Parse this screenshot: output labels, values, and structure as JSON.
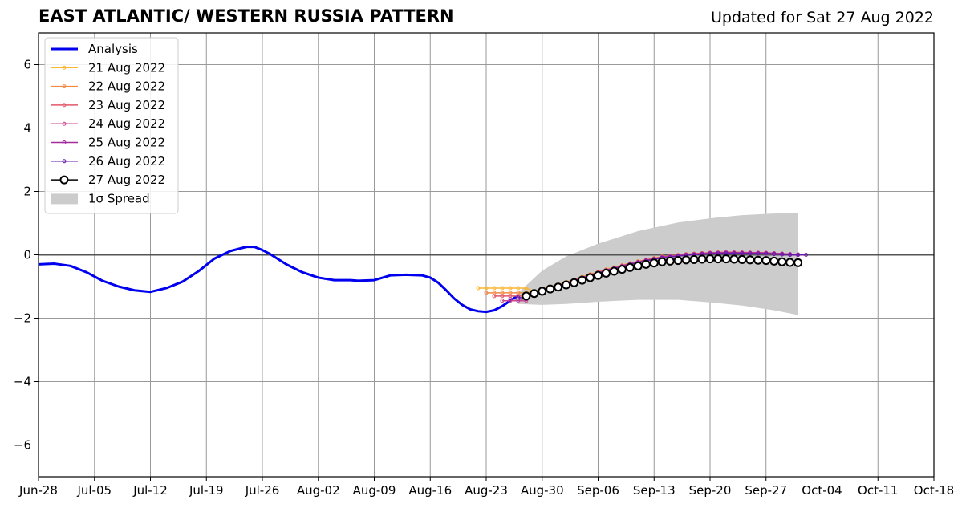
{
  "header": {
    "title": "EAST ATLANTIC/ WESTERN RUSSIA PATTERN",
    "updated": "Updated for Sat 27 Aug 2022"
  },
  "chart_data": {
    "type": "line",
    "title": "EAST ATLANTIC/ WESTERN RUSSIA PATTERN",
    "subtitle": "Updated for Sat 27 Aug 2022",
    "xlabel": "",
    "ylabel": "",
    "x_tick_labels": [
      "Jun-28",
      "Jul-05",
      "Jul-12",
      "Jul-19",
      "Jul-26",
      "Aug-02",
      "Aug-09",
      "Aug-16",
      "Aug-23",
      "Aug-30",
      "Sep-06",
      "Sep-13",
      "Sep-20",
      "Sep-27",
      "Oct-04",
      "Oct-11",
      "Oct-18"
    ],
    "x_tick_days": [
      0,
      7,
      14,
      21,
      28,
      35,
      42,
      49,
      56,
      63,
      70,
      77,
      84,
      91,
      98,
      105,
      112
    ],
    "y_tick_labels": [
      "−6",
      "−4",
      "−2",
      "0",
      "2",
      "4",
      "6"
    ],
    "y_tick_values": [
      -6,
      -4,
      -2,
      0,
      2,
      4,
      6
    ],
    "xlim_days": [
      0,
      112
    ],
    "ylim": [
      -7,
      7
    ],
    "x_axis_start_date": "Jun-28",
    "grid": true,
    "zero_line": true,
    "legend_position": "top-left",
    "analysis": {
      "name": "Analysis",
      "color": "#0000ee",
      "x": [
        0,
        2,
        4,
        6,
        8,
        10,
        12,
        14,
        16,
        18,
        20,
        22,
        24,
        26,
        27,
        28,
        29,
        31,
        33,
        35,
        37,
        39,
        40,
        42,
        44,
        46,
        48,
        49,
        50,
        51,
        52,
        53,
        54,
        55,
        56,
        57,
        58,
        59,
        60
      ],
      "y": [
        -0.3,
        -0.28,
        -0.35,
        -0.55,
        -0.82,
        -1.0,
        -1.12,
        -1.17,
        -1.05,
        -0.85,
        -0.52,
        -0.12,
        0.12,
        0.25,
        0.25,
        0.15,
        0.02,
        -0.3,
        -0.55,
        -0.72,
        -0.8,
        -0.8,
        -0.82,
        -0.8,
        -0.65,
        -0.63,
        -0.65,
        -0.72,
        -0.88,
        -1.12,
        -1.38,
        -1.58,
        -1.72,
        -1.78,
        -1.8,
        -1.75,
        -1.62,
        -1.45,
        -1.28
      ]
    },
    "forecasts": [
      {
        "name": "21 Aug 2022",
        "color": "#fbb535",
        "start_day": 55,
        "start_value": -1.05,
        "end_day": 91,
        "end_value": 0.0
      },
      {
        "name": "22 Aug 2022",
        "color": "#f28a45",
        "start_day": 56,
        "start_value": -1.2,
        "end_day": 92,
        "end_value": 0.0
      },
      {
        "name": "23 Aug 2022",
        "color": "#e4566a",
        "start_day": 57,
        "start_value": -1.3,
        "end_day": 93,
        "end_value": 0.0
      },
      {
        "name": "24 Aug 2022",
        "color": "#cc4a91",
        "start_day": 58,
        "start_value": -1.45,
        "end_day": 94,
        "end_value": 0.0
      },
      {
        "name": "25 Aug 2022",
        "color": "#a52a9e",
        "start_day": 59,
        "start_value": -1.4,
        "end_day": 95,
        "end_value": 0.0
      },
      {
        "name": "26 Aug 2022",
        "color": "#6a1aa8",
        "start_day": 60,
        "start_value": -1.35,
        "end_day": 96,
        "end_value": 0.0
      }
    ],
    "current_forecast": {
      "name": "27 Aug 2022",
      "color": "#000000",
      "x": [
        61,
        62,
        63,
        64,
        65,
        66,
        67,
        68,
        69,
        70,
        71,
        72,
        73,
        74,
        75,
        76,
        77,
        78,
        79,
        80,
        81,
        82,
        83,
        84,
        85,
        86,
        87,
        88,
        89,
        90,
        91,
        92,
        93,
        94,
        95
      ],
      "y": [
        -1.3,
        -1.22,
        -1.15,
        -1.08,
        -1.02,
        -0.95,
        -0.88,
        -0.8,
        -0.72,
        -0.65,
        -0.58,
        -0.52,
        -0.46,
        -0.4,
        -0.35,
        -0.3,
        -0.26,
        -0.22,
        -0.2,
        -0.18,
        -0.16,
        -0.15,
        -0.14,
        -0.13,
        -0.13,
        -0.13,
        -0.14,
        -0.15,
        -0.16,
        -0.17,
        -0.18,
        -0.2,
        -0.22,
        -0.24,
        -0.25
      ]
    },
    "spread": {
      "name": "1σ Spread",
      "color": "#cccccc",
      "x": [
        60,
        63,
        66,
        70,
        75,
        80,
        84,
        88,
        92,
        95
      ],
      "upper": [
        -1.2,
        -0.5,
        -0.05,
        0.35,
        0.75,
        1.02,
        1.15,
        1.25,
        1.3,
        1.32
      ],
      "lower": [
        -1.55,
        -1.58,
        -1.55,
        -1.48,
        -1.42,
        -1.42,
        -1.5,
        -1.6,
        -1.75,
        -1.9
      ]
    },
    "legend": [
      "Analysis",
      "21 Aug 2022",
      "22 Aug 2022",
      "23 Aug 2022",
      "24 Aug 2022",
      "25 Aug 2022",
      "26 Aug 2022",
      "27 Aug 2022",
      "1σ Spread"
    ]
  }
}
